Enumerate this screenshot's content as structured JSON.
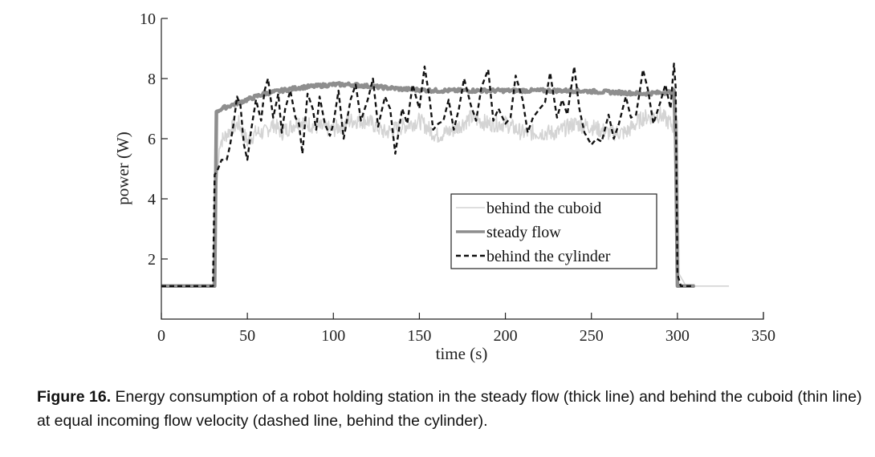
{
  "chart_data": {
    "type": "line",
    "xlabel": "time (s)",
    "ylabel": "power (W)",
    "xlim": [
      0,
      350
    ],
    "ylim": [
      0,
      10
    ],
    "xticks": [
      0,
      50,
      100,
      150,
      200,
      250,
      300,
      350
    ],
    "yticks": [
      2,
      4,
      6,
      8,
      10
    ],
    "grid": false,
    "legend_position": "center-right",
    "series": [
      {
        "name": "behind the cuboid",
        "color": "#d4d4d4",
        "style": "thin",
        "x": [
          0,
          30,
          31,
          34,
          36,
          40,
          45,
          50,
          55,
          60,
          65,
          70,
          80,
          90,
          100,
          110,
          120,
          130,
          140,
          150,
          160,
          170,
          180,
          190,
          200,
          210,
          220,
          230,
          240,
          250,
          260,
          270,
          280,
          290,
          298,
          300,
          301,
          305,
          330
        ],
        "y": [
          1.1,
          1.1,
          3.5,
          5.9,
          6.0,
          6.3,
          6.5,
          5.9,
          6.2,
          6.2,
          6.5,
          6.2,
          6.6,
          6.4,
          6.3,
          6.6,
          6.6,
          6.2,
          6.4,
          6.6,
          6.1,
          6.3,
          6.7,
          6.5,
          6.5,
          6.2,
          6.2,
          6.2,
          6.5,
          6.4,
          6.2,
          6.2,
          6.7,
          6.8,
          6.4,
          6.6,
          1.5,
          1.1,
          1.1
        ]
      },
      {
        "name": "steady flow",
        "color": "#8e8e8e",
        "style": "thick",
        "x": [
          0,
          31,
          32,
          35,
          40,
          50,
          60,
          70,
          80,
          90,
          100,
          110,
          120,
          140,
          160,
          180,
          200,
          220,
          240,
          260,
          280,
          296,
          298,
          299,
          300,
          310
        ],
        "y": [
          1.1,
          1.1,
          6.9,
          7.0,
          7.1,
          7.3,
          7.5,
          7.6,
          7.7,
          7.75,
          7.8,
          7.8,
          7.75,
          7.65,
          7.6,
          7.6,
          7.6,
          7.6,
          7.6,
          7.55,
          7.5,
          7.55,
          7.6,
          6.0,
          1.1,
          1.1
        ]
      },
      {
        "name": "behind the cylinder",
        "color": "#111111",
        "style": "dashed",
        "x": [
          0,
          30,
          31,
          33,
          35,
          38,
          40,
          42,
          44,
          46,
          48,
          50,
          52,
          55,
          58,
          60,
          62,
          65,
          68,
          70,
          72,
          75,
          78,
          80,
          82,
          85,
          88,
          90,
          92,
          95,
          98,
          100,
          103,
          106,
          110,
          113,
          116,
          120,
          123,
          126,
          130,
          133,
          136,
          140,
          143,
          146,
          150,
          153,
          156,
          158,
          161,
          164,
          167,
          170,
          173,
          176,
          180,
          183,
          186,
          190,
          193,
          196,
          200,
          203,
          206,
          210,
          213,
          216,
          220,
          223,
          226,
          230,
          233,
          236,
          240,
          243,
          246,
          250,
          253,
          256,
          260,
          263,
          266,
          270,
          273,
          276,
          280,
          283,
          286,
          290,
          293,
          296,
          298,
          299,
          300,
          302,
          305,
          310
        ],
        "y": [
          1.1,
          1.1,
          4.8,
          5.0,
          5.3,
          5.3,
          5.8,
          6.5,
          7.4,
          7.1,
          5.8,
          5.3,
          6.2,
          7.3,
          6.6,
          7.6,
          8.0,
          6.7,
          7.5,
          6.2,
          7.0,
          7.6,
          6.7,
          6.5,
          5.5,
          7.5,
          7.0,
          6.3,
          7.4,
          6.5,
          6.1,
          6.5,
          7.6,
          6.0,
          7.3,
          7.8,
          6.6,
          7.3,
          8.0,
          6.4,
          7.4,
          7.0,
          5.5,
          7.0,
          6.5,
          7.8,
          7.0,
          8.4,
          7.3,
          6.3,
          6.5,
          6.6,
          7.3,
          6.3,
          7.0,
          8.0,
          7.1,
          6.6,
          7.7,
          8.3,
          6.6,
          7.0,
          6.5,
          6.7,
          8.1,
          7.3,
          6.2,
          6.7,
          7.0,
          7.2,
          8.2,
          6.7,
          7.3,
          6.8,
          8.4,
          7.0,
          6.2,
          5.8,
          6.0,
          5.9,
          6.8,
          6.0,
          6.5,
          7.4,
          6.7,
          6.8,
          8.3,
          7.6,
          6.5,
          7.2,
          7.8,
          7.0,
          8.5,
          7.7,
          1.5,
          1.1,
          1.1,
          1.1
        ]
      }
    ]
  },
  "caption": {
    "label": "Figure 16.",
    "text": " Energy consumption of a robot holding station in the steady flow (thick line) and behind the cuboid (thin line) at equal incoming flow velocity (dashed line, behind the cylinder)."
  }
}
